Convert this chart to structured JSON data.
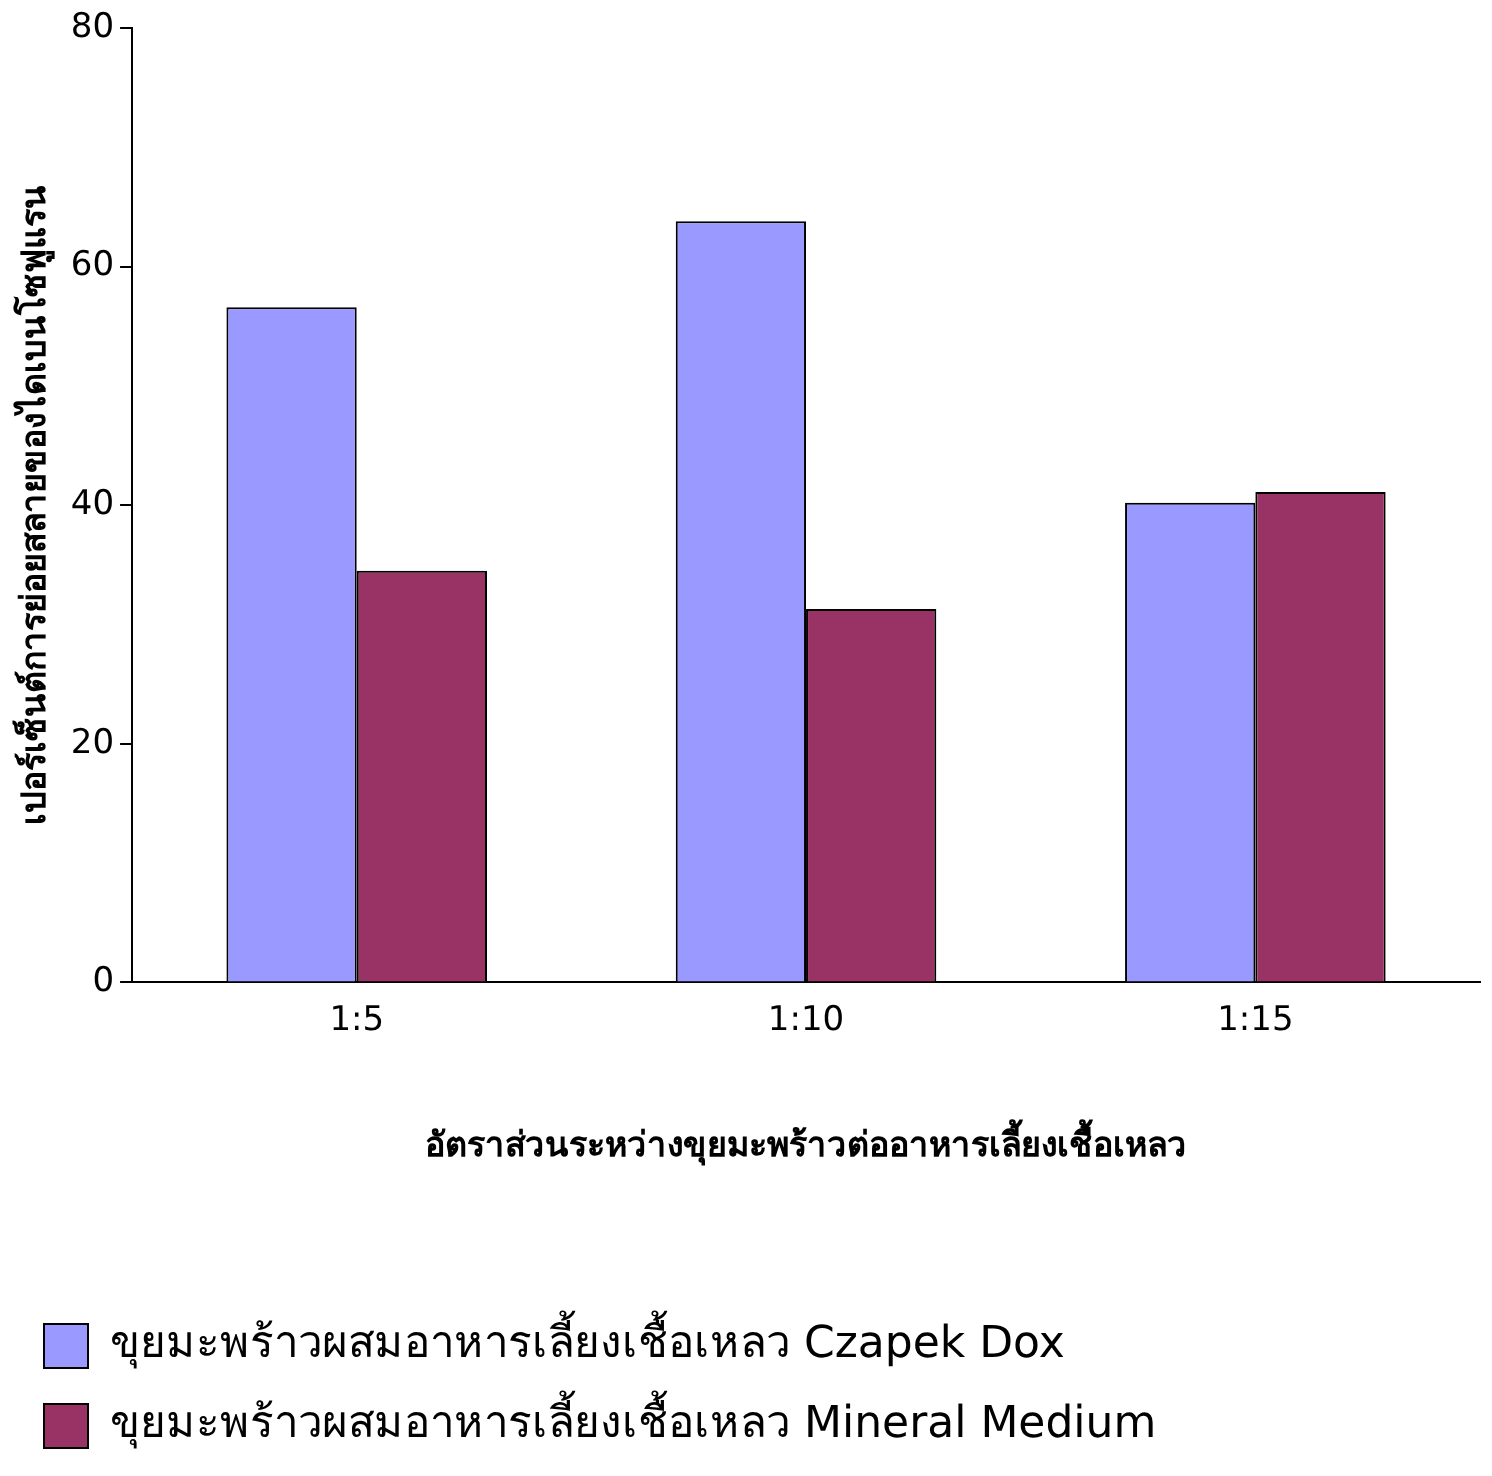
{
  "chart_data": {
    "type": "bar",
    "xlabel": "อัตราส่วนระหว่างขุยมะพร้าวต่ออาหารเลี้ยงเชื้อเหลว",
    "ylabel": "เปอร์เซ็นต์การย่อยสลายของไดเบนโซฟูแรน",
    "categories": [
      "1:5",
      "1:10",
      "1:15"
    ],
    "series": [
      {
        "name": "ขุยมะพร้าวผสมอาหารเลี้ยงเชื้อเหลว Czapek Dox",
        "color": "#9999ff",
        "values": [
          56.6,
          63.8,
          40.2
        ]
      },
      {
        "name": "ขุยมะพร้าวผสมอาหารเลี้ยงเชื้อเหลว Mineral Medium",
        "color": "#993366",
        "values": [
          34.5,
          31.3,
          41.1
        ]
      }
    ],
    "ylim": [
      0,
      80
    ],
    "yticks": [
      0,
      20,
      40,
      60,
      80
    ],
    "grid": false,
    "legend": "bottom"
  }
}
